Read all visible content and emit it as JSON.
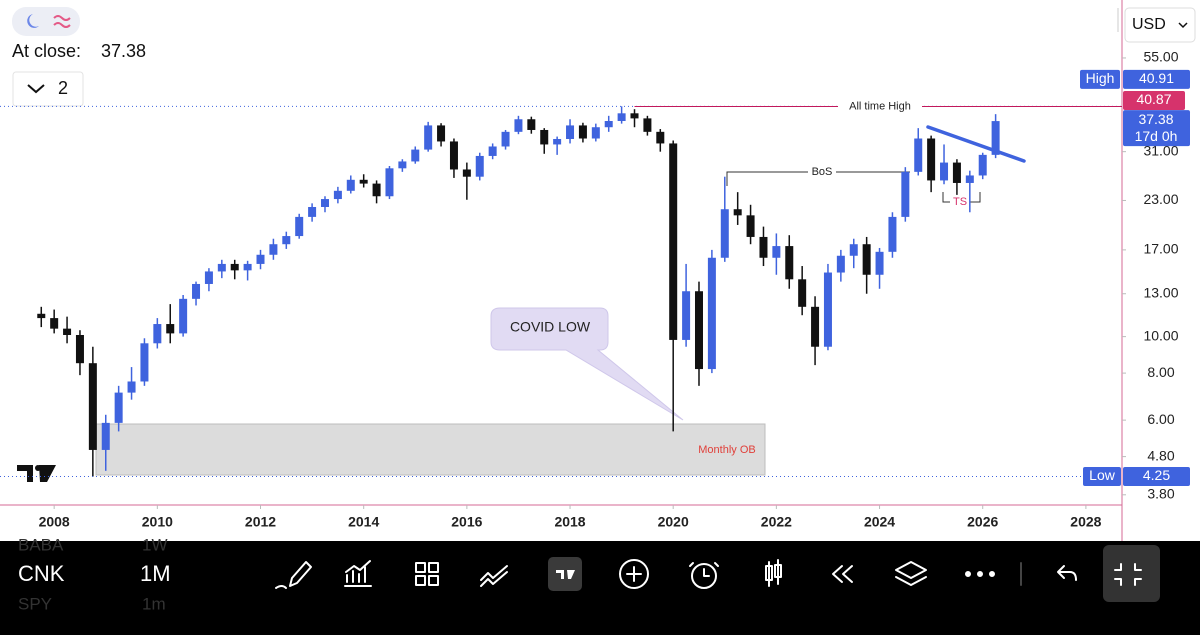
{
  "ui": {
    "close_label": "At close:",
    "interval_count": "2",
    "currency": "USD",
    "symbol": "CNK",
    "interval": "1M",
    "prev_symbol": "BABA",
    "prev_interval": "1W",
    "next_symbol": "SPY",
    "next_interval": "1m"
  },
  "chart_data": {
    "type": "candlestick",
    "log_scale": true,
    "up_color": "#3f63de",
    "down_color": "#111111",
    "xlim": [
      2006.95,
      2028.7
    ],
    "ylim": [
      3.57,
      78.4
    ],
    "xticks": [
      2008,
      2010,
      2012,
      2014,
      2016,
      2018,
      2020,
      2022,
      2024,
      2026,
      2028
    ],
    "yticks": [
      {
        "value": 55,
        "label": "55.00"
      },
      {
        "value": 31,
        "label": "31.00"
      },
      {
        "value": 23,
        "label": "23.00"
      },
      {
        "value": 17,
        "label": "17.00"
      },
      {
        "value": 13,
        "label": "13.00"
      },
      {
        "value": 10,
        "label": "10.00"
      },
      {
        "value": 8,
        "label": "8.00"
      },
      {
        "value": 6,
        "label": "6.00"
      },
      {
        "value": 4.8,
        "label": "4.80"
      },
      {
        "value": 3.8,
        "label": "3.80"
      }
    ],
    "x": [
      2007.75,
      2008.0,
      2008.25,
      2008.5,
      2008.75,
      2009.0,
      2009.25,
      2009.5,
      2009.75,
      2010.0,
      2010.25,
      2010.5,
      2010.75,
      2011.0,
      2011.25,
      2011.5,
      2011.75,
      2012.0,
      2012.25,
      2012.5,
      2012.75,
      2013.0,
      2013.25,
      2013.5,
      2013.75,
      2014.0,
      2014.25,
      2014.5,
      2014.75,
      2015.0,
      2015.25,
      2015.5,
      2015.75,
      2016.0,
      2016.25,
      2016.5,
      2016.75,
      2017.0,
      2017.25,
      2017.5,
      2017.75,
      2018.0,
      2018.25,
      2018.5,
      2018.75,
      2019.0,
      2019.25,
      2019.5,
      2019.75,
      2020.0,
      2020.25,
      2020.5,
      2020.75,
      2021.0,
      2021.25,
      2021.5,
      2021.75,
      2022.0,
      2022.25,
      2022.5,
      2022.75,
      2023.0,
      2023.25,
      2023.5,
      2023.75,
      2024.0,
      2024.25,
      2024.5,
      2024.75,
      2025.0,
      2025.25,
      2025.5,
      2025.75,
      2026.0,
      2026.25
    ],
    "open": [
      11.5,
      11.2,
      10.5,
      10.1,
      8.5,
      5.0,
      5.9,
      7.1,
      7.6,
      9.6,
      10.8,
      10.2,
      12.6,
      13.8,
      14.9,
      15.6,
      15.0,
      15.6,
      16.5,
      17.6,
      18.5,
      20.8,
      22.1,
      23.2,
      24.4,
      26.1,
      25.5,
      23.6,
      28.0,
      29.2,
      31.4,
      36.4,
      33.0,
      27.8,
      26.6,
      30.2,
      32.0,
      35.0,
      37.8,
      35.4,
      32.4,
      33.5,
      36.4,
      33.6,
      36.0,
      37.4,
      39.2,
      38.0,
      35.0,
      32.6,
      9.8,
      13.2,
      8.2,
      16.2,
      21.8,
      21.0,
      18.4,
      16.2,
      17.4,
      14.2,
      12.0,
      9.4,
      14.8,
      16.4,
      17.6,
      14.6,
      16.8,
      20.8,
      27.4,
      33.6,
      26.0,
      29.0,
      25.6,
      26.8,
      30.4
    ],
    "high": [
      12.0,
      11.8,
      11.3,
      10.4,
      9.4,
      6.2,
      7.4,
      8.3,
      9.9,
      11.2,
      12.2,
      12.9,
      14.0,
      15.2,
      16.0,
      16.0,
      15.9,
      17.0,
      18.2,
      19.0,
      21.2,
      22.6,
      23.6,
      25.0,
      26.8,
      27.0,
      26.0,
      28.4,
      29.6,
      32.0,
      37.2,
      36.9,
      33.6,
      29.0,
      30.8,
      32.6,
      35.4,
      38.6,
      38.4,
      35.8,
      34.0,
      37.8,
      37.0,
      36.8,
      38.6,
      40.91,
      40.2,
      38.6,
      35.6,
      33.2,
      15.6,
      14.0,
      17.0,
      26.6,
      24.2,
      22.4,
      19.6,
      18.8,
      18.6,
      15.4,
      12.8,
      15.6,
      17.0,
      18.2,
      18.4,
      17.2,
      21.4,
      28.2,
      35.8,
      34.2,
      32.4,
      29.6,
      27.6,
      30.8,
      39.0
    ],
    "low": [
      10.6,
      10.2,
      9.6,
      7.9,
      4.25,
      4.4,
      5.6,
      6.8,
      7.4,
      9.3,
      9.6,
      10.0,
      12.1,
      13.2,
      14.3,
      14.2,
      14.1,
      15.1,
      16.0,
      17.1,
      18.2,
      20.2,
      21.4,
      22.6,
      24.0,
      24.9,
      22.6,
      23.2,
      27.4,
      28.8,
      31.0,
      32.0,
      26.4,
      23.1,
      26.0,
      29.6,
      31.4,
      34.5,
      34.6,
      30.6,
      30.4,
      32.6,
      32.8,
      33.0,
      35.0,
      36.8,
      36.0,
      34.2,
      31.0,
      5.6,
      9.4,
      7.4,
      8.0,
      15.8,
      19.8,
      17.6,
      15.4,
      14.6,
      13.4,
      11.4,
      8.4,
      9.2,
      14.0,
      15.2,
      13.0,
      13.4,
      16.2,
      20.2,
      26.8,
      24.2,
      25.4,
      23.8,
      21.4,
      26.2,
      29.8
    ],
    "close": [
      11.2,
      10.5,
      10.1,
      8.5,
      5.0,
      5.9,
      7.1,
      7.6,
      9.6,
      10.8,
      10.2,
      12.6,
      13.8,
      14.9,
      15.6,
      15.0,
      15.6,
      16.5,
      17.6,
      18.5,
      20.8,
      22.1,
      23.2,
      24.4,
      26.1,
      25.5,
      23.6,
      28.0,
      29.2,
      31.4,
      36.4,
      33.0,
      27.8,
      26.6,
      30.2,
      32.0,
      35.0,
      37.8,
      35.4,
      32.4,
      33.5,
      36.4,
      33.6,
      36.0,
      37.4,
      39.2,
      38.0,
      35.0,
      32.6,
      9.8,
      13.2,
      8.2,
      16.2,
      21.8,
      21.0,
      18.4,
      16.2,
      17.4,
      14.2,
      12.0,
      9.4,
      14.8,
      16.4,
      17.6,
      14.6,
      16.8,
      20.8,
      27.4,
      33.6,
      26.0,
      29.0,
      25.6,
      26.8,
      30.4,
      37.38
    ],
    "price_high": {
      "label": "High",
      "value": 40.91
    },
    "price_low": {
      "label": "Low",
      "value": 4.25
    },
    "ath_line": {
      "label": "All time High",
      "value": 40.87
    },
    "last_price": {
      "value": 37.38,
      "countdown": "17d 0h"
    },
    "annotations": {
      "bos": "BoS",
      "ts": "TS",
      "callout": "COVID LOW",
      "zone": "Monthly OB"
    }
  }
}
